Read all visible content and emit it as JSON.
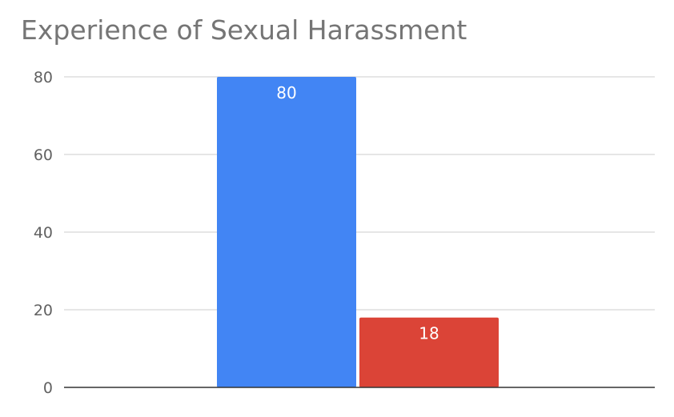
{
  "chart_data": {
    "type": "bar",
    "title": "Experience of Sexual Harassment",
    "xlabel": "",
    "ylabel": "",
    "ylim": [
      0,
      80
    ],
    "yticks": [
      0,
      20,
      40,
      60,
      80
    ],
    "grid": true,
    "legend": "none",
    "series": [
      {
        "value": 80,
        "label": "80",
        "color": "#4285F4"
      },
      {
        "value": 18,
        "label": "18",
        "color": "#DB4437"
      }
    ]
  }
}
